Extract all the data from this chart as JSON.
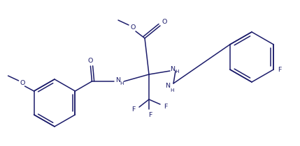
{
  "line_color": "#1c1c6b",
  "bg_color": "#ffffff",
  "text_color": "#1c1c6b",
  "font_size": 6.8,
  "font_size_small": 5.2,
  "line_width": 1.1,
  "fig_width": 4.29,
  "fig_height": 2.1,
  "dpi": 100,
  "xlim": [
    0,
    429
  ],
  "ylim": [
    0,
    210
  ]
}
